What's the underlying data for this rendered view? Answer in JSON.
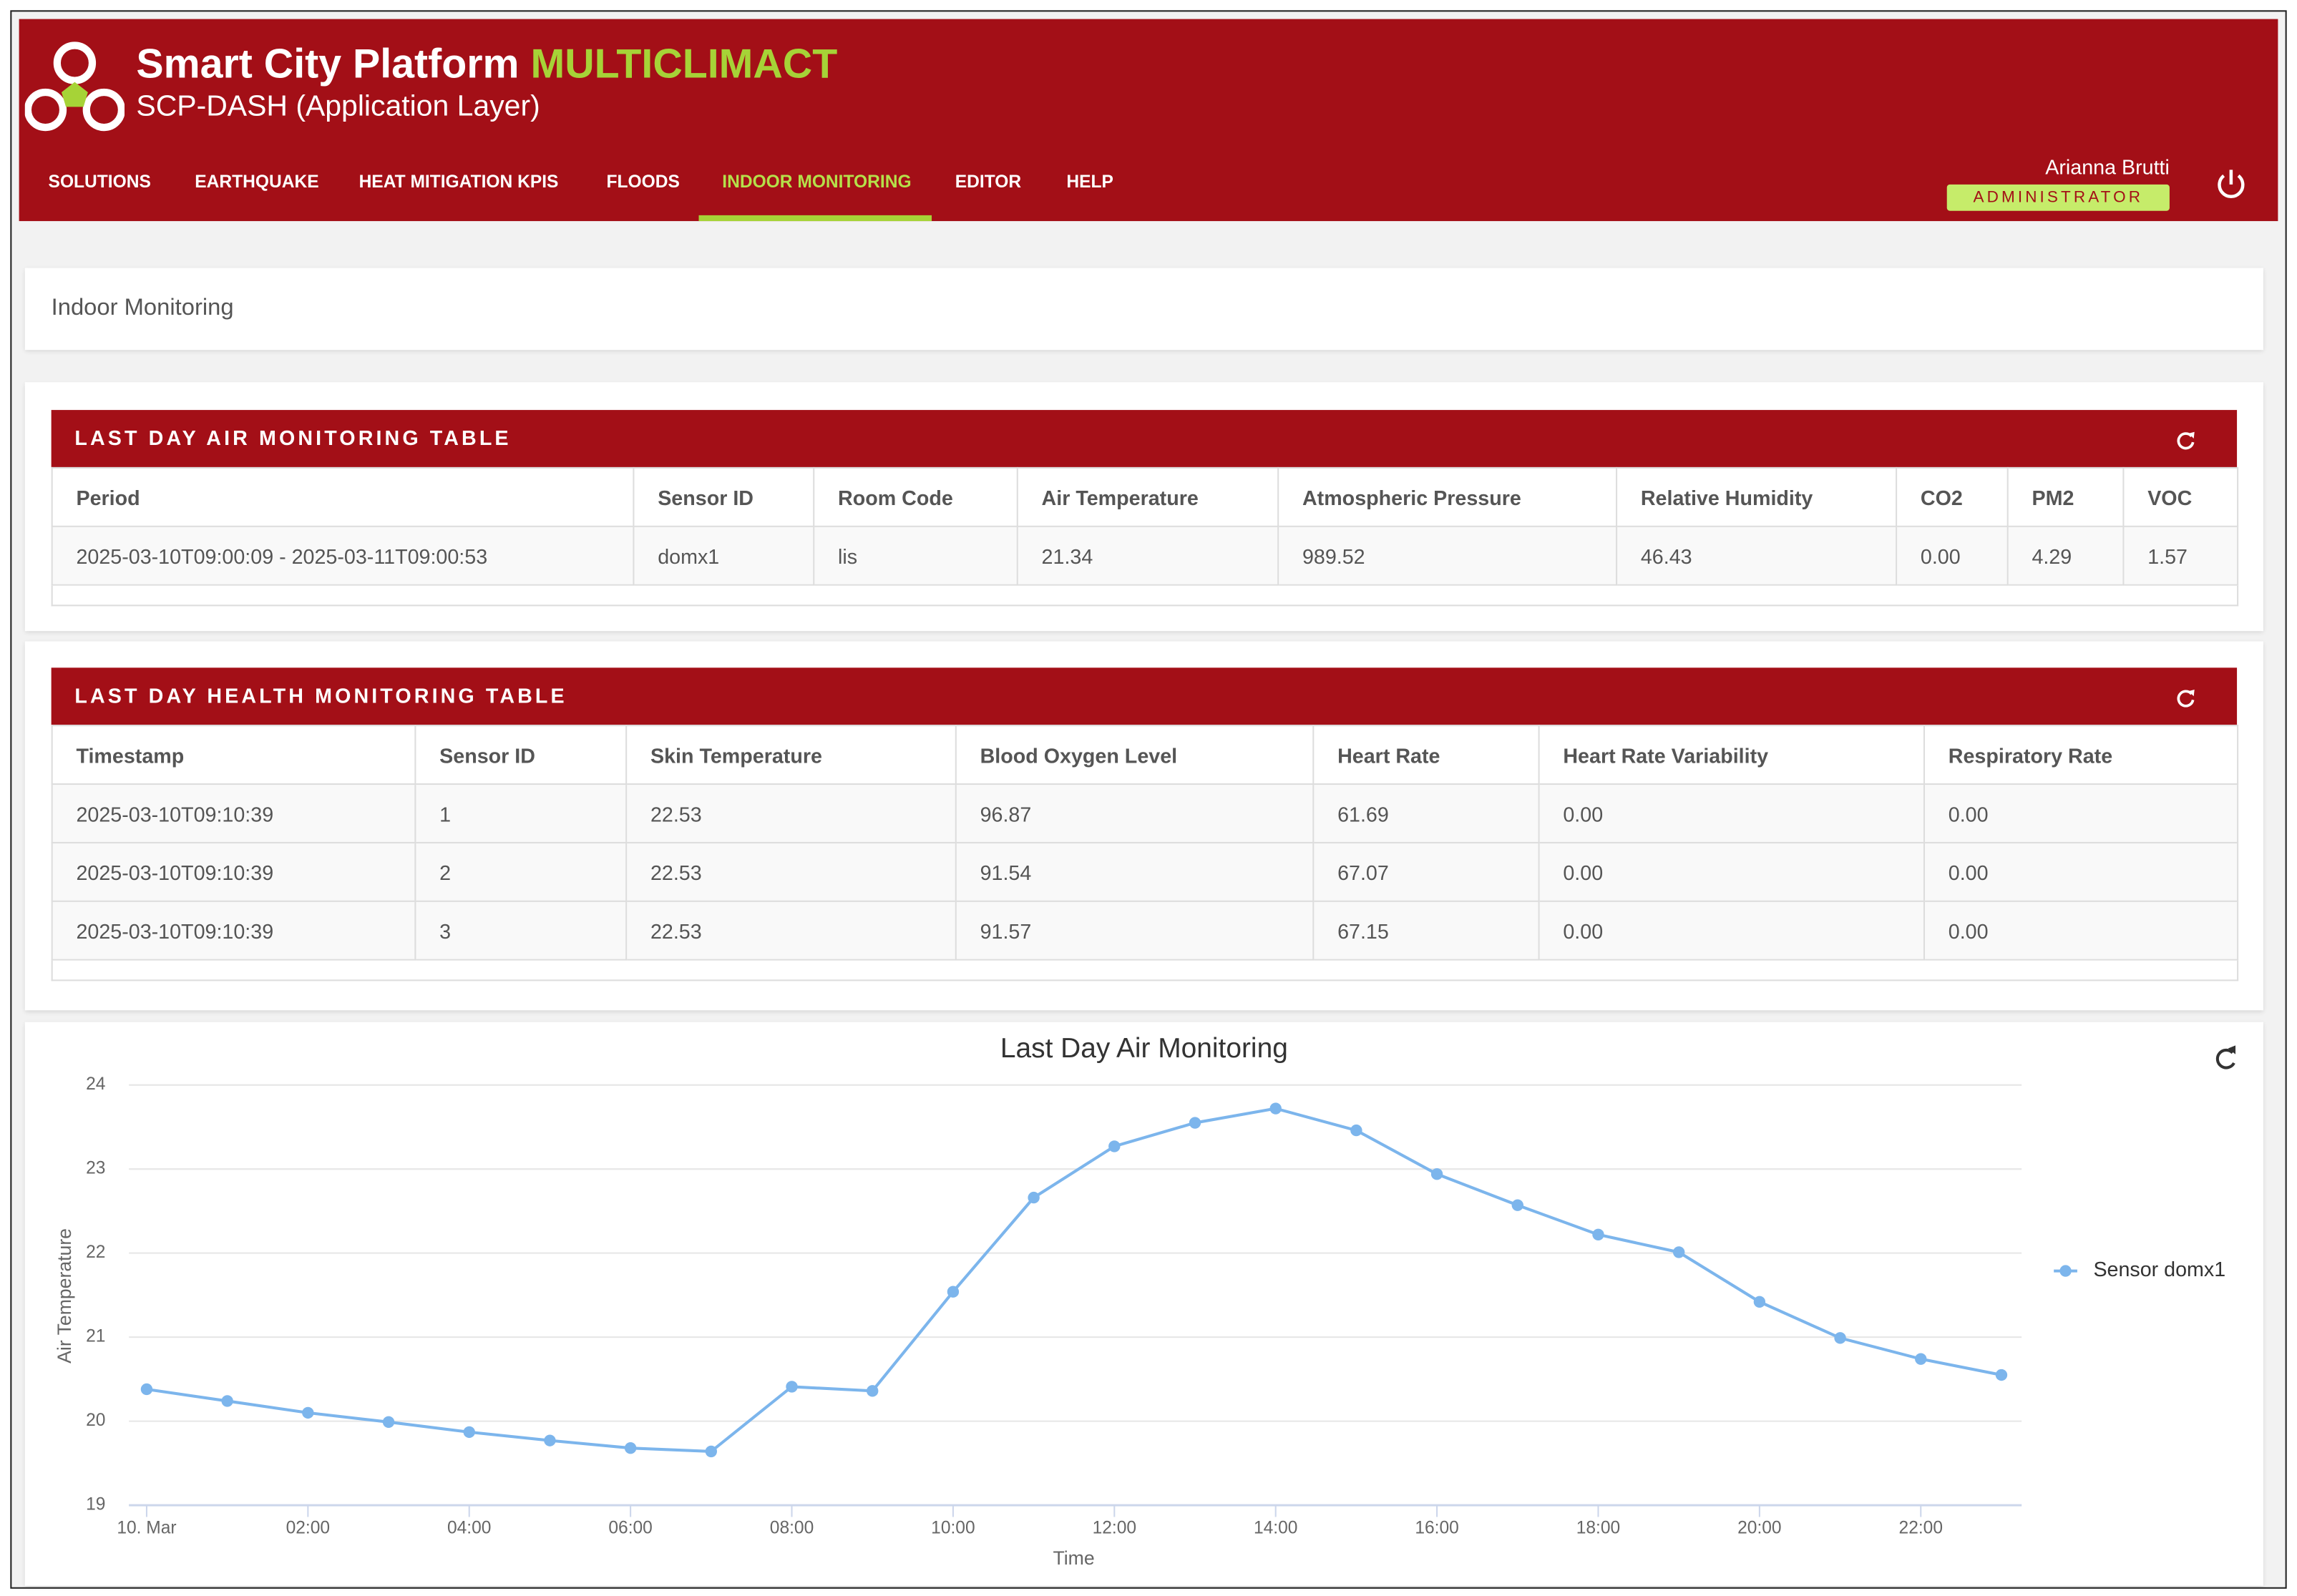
{
  "header": {
    "title": "Smart City Platform",
    "brand": "MULTICLIMACT",
    "subtitle": "SCP-DASH (Application Layer)",
    "nav": [
      "SOLUTIONS",
      "EARTHQUAKE",
      "HEAT MITIGATION KPIS",
      "FLOODS",
      "INDOOR MONITORING",
      "EDITOR",
      "HELP"
    ]
  },
  "user": {
    "name": "Arianna Brutti",
    "role": "ADMINISTRATOR"
  },
  "page_title": "Indoor Monitoring",
  "air_table": {
    "title": "LAST DAY AIR MONITORING TABLE",
    "columns": [
      "Period",
      "Sensor ID",
      "Room Code",
      "Air Temperature",
      "Atmospheric Pressure",
      "Relative Humidity",
      "CO2",
      "PM2",
      "VOC"
    ],
    "rows": [
      [
        "2025-03-10T09:00:09 - 2025-03-11T09:00:53",
        "domx1",
        "lis",
        "21.34",
        "989.52",
        "46.43",
        "0.00",
        "4.29",
        "1.57"
      ]
    ]
  },
  "health_table": {
    "title": "LAST DAY HEALTH MONITORING TABLE",
    "columns": [
      "Timestamp",
      "Sensor ID",
      "Skin Temperature",
      "Blood Oxygen Level",
      "Heart Rate",
      "Heart Rate Variability",
      "Respiratory Rate"
    ],
    "rows": [
      [
        "2025-03-10T09:10:39",
        "1",
        "22.53",
        "96.87",
        "61.69",
        "0.00",
        "0.00"
      ],
      [
        "2025-03-10T09:10:39",
        "2",
        "22.53",
        "91.54",
        "67.07",
        "0.00",
        "0.00"
      ],
      [
        "2025-03-10T09:10:39",
        "3",
        "22.53",
        "91.57",
        "67.15",
        "0.00",
        "0.00"
      ]
    ]
  },
  "chart_data": {
    "type": "line",
    "title": "Last Day Air Monitoring",
    "x_label": "Time",
    "y_label": "Air Temperature",
    "x": [
      0,
      1,
      2,
      3,
      4,
      5,
      6,
      7,
      8,
      9,
      10,
      11,
      12,
      13,
      14,
      15,
      16,
      17,
      18,
      19,
      20,
      21,
      22,
      23
    ],
    "xlim": [
      -0.22,
      23.25
    ],
    "xticks": [
      {
        "value": 0,
        "label": "10. Mar"
      },
      {
        "value": 2,
        "label": "02:00"
      },
      {
        "value": 4,
        "label": "04:00"
      },
      {
        "value": 6,
        "label": "06:00"
      },
      {
        "value": 8,
        "label": "08:00"
      },
      {
        "value": 10,
        "label": "10:00"
      },
      {
        "value": 12,
        "label": "12:00"
      },
      {
        "value": 14,
        "label": "14:00"
      },
      {
        "value": 16,
        "label": "16:00"
      },
      {
        "value": 18,
        "label": "18:00"
      },
      {
        "value": 20,
        "label": "20:00"
      },
      {
        "value": 22,
        "label": "22:00"
      }
    ],
    "ylim": [
      19,
      24
    ],
    "yticks": [
      19,
      20,
      21,
      22,
      23,
      24
    ],
    "grid": true,
    "legend": "right",
    "series": [
      {
        "name": "Sensor domx1",
        "color": "#7cb5ec",
        "values": [
          20.38,
          20.24,
          20.1,
          19.99,
          19.87,
          19.77,
          19.68,
          19.64,
          20.41,
          20.36,
          21.54,
          22.66,
          23.27,
          23.55,
          23.72,
          23.46,
          22.94,
          22.57,
          22.22,
          22.01,
          21.42,
          20.99,
          20.74,
          20.55
        ]
      }
    ]
  }
}
